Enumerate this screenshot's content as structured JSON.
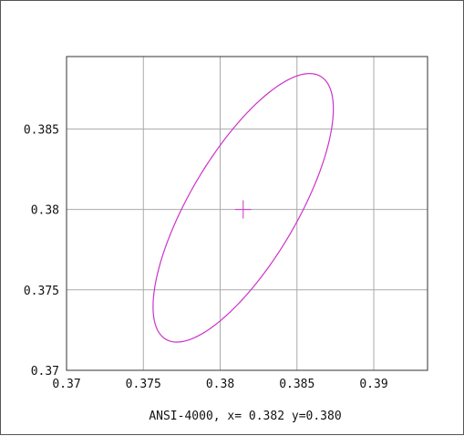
{
  "chart_data": {
    "type": "line",
    "title": "",
    "xlabel": "",
    "ylabel": "",
    "caption": "ANSI-4000, x= 0.382 y=0.380",
    "xlim": [
      0.37,
      0.3935
    ],
    "ylim": [
      0.37,
      0.3895
    ],
    "x_ticks": [
      {
        "value": 0.37,
        "label": "0.37"
      },
      {
        "value": 0.375,
        "label": "0.375"
      },
      {
        "value": 0.38,
        "label": "0.38"
      },
      {
        "value": 0.385,
        "label": "0.385"
      },
      {
        "value": 0.39,
        "label": "0.39"
      }
    ],
    "y_ticks": [
      {
        "value": 0.37,
        "label": "0.37"
      },
      {
        "value": 0.375,
        "label": "0.375"
      },
      {
        "value": 0.38,
        "label": "0.38"
      },
      {
        "value": 0.385,
        "label": "0.385"
      }
    ],
    "grid": true,
    "series": [
      {
        "kind": "ellipse",
        "center": {
          "x": 0.3815,
          "y": 0.3801
        },
        "rx": 0.00345,
        "ry": 0.0096,
        "rotation_deg": 32,
        "color": "#cc33cc"
      }
    ],
    "marker": {
      "kind": "crosshair",
      "x": 0.3815,
      "y": 0.38,
      "color": "#cc33cc"
    }
  }
}
